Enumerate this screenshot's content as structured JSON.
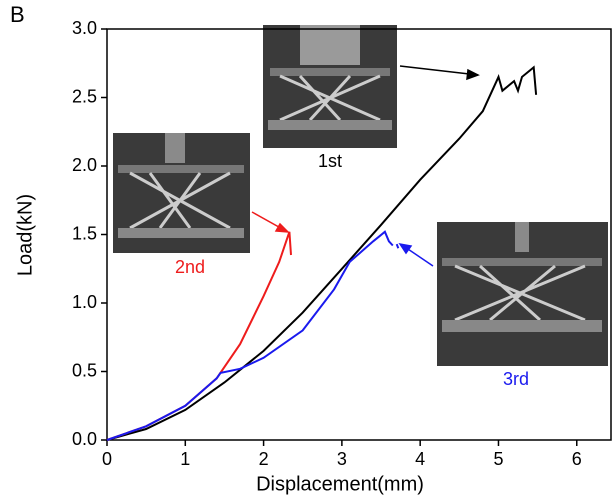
{
  "chart_data": {
    "type": "line",
    "panel_label": "B",
    "xlabel": "Displacement(mm)",
    "ylabel": "Load(kN)",
    "xlim": [
      0,
      6.45
    ],
    "ylim": [
      0,
      3.0
    ],
    "xticks": [
      0,
      1,
      2,
      3,
      4,
      5,
      6
    ],
    "yticks": [
      {
        "value": 0,
        "label": "0.0"
      },
      {
        "value": 0.5,
        "label": "0.5"
      },
      {
        "value": 1,
        "label": "1.0"
      },
      {
        "value": 1.5,
        "label": "1.5"
      },
      {
        "value": 2,
        "label": "2.0"
      },
      {
        "value": 2.5,
        "label": "2.5"
      },
      {
        "value": 3,
        "label": "3.0"
      }
    ],
    "series": [
      {
        "name": "1st",
        "color": "#000000",
        "x": [
          0,
          0.5,
          1,
          1.5,
          2,
          2.5,
          3,
          3.5,
          4,
          4.5,
          4.8,
          5.0,
          5.05,
          5.2,
          5.25,
          5.3,
          5.45,
          5.48
        ],
        "values": [
          0,
          0.08,
          0.22,
          0.42,
          0.65,
          0.93,
          1.25,
          1.57,
          1.9,
          2.2,
          2.4,
          2.65,
          2.55,
          2.62,
          2.55,
          2.65,
          2.72,
          2.52
        ]
      },
      {
        "name": "2nd",
        "color": "#ee1c1c",
        "x": [
          0,
          0.5,
          1,
          1.4,
          1.7,
          2,
          2.2,
          2.33,
          2.35
        ],
        "values": [
          0,
          0.1,
          0.25,
          0.45,
          0.7,
          1.05,
          1.3,
          1.52,
          1.35
        ]
      },
      {
        "name": "3rd",
        "color": "#1a1aee",
        "x": [
          0,
          0.5,
          1,
          1.4,
          1.45,
          1.7,
          2,
          2.5,
          2.9,
          3.1,
          3.4,
          3.55,
          3.6,
          3.65,
          3.67,
          3.7,
          3.72
        ],
        "values": [
          0,
          0.1,
          0.25,
          0.45,
          0.49,
          0.52,
          0.6,
          0.8,
          1.1,
          1.3,
          1.45,
          1.52,
          1.45,
          1.42,
          null,
          1.43,
          1.4
        ]
      }
    ]
  }
}
